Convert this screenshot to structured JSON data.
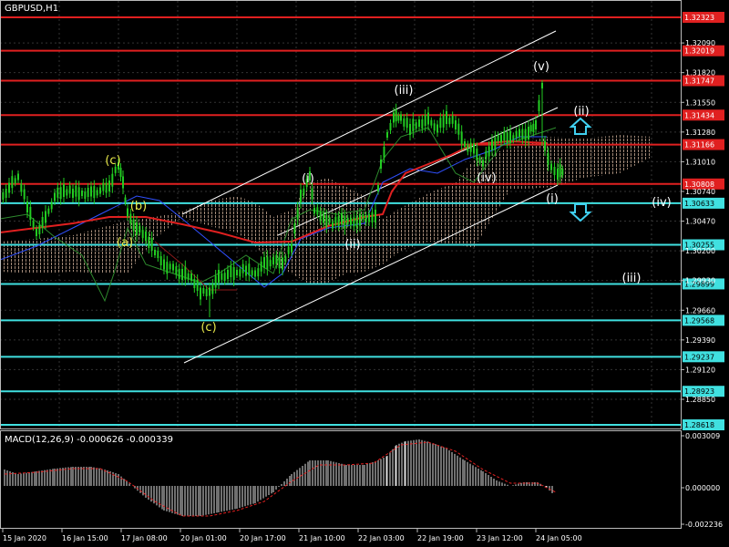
{
  "symbol_label": "GBPUSD,H1",
  "macd_label": "MACD(12,26,9) -0.000626 -0.000339",
  "colors": {
    "background": "#000000",
    "resistance": "#e02020",
    "support": "#40e0e0",
    "price": "#22cc22",
    "channel": "#ffffff",
    "ma": "#e02020",
    "cloud": "#d9b8a0",
    "wave_yellow": "#e8e84a",
    "wave_white": "#ffffff",
    "arrow": "#40d0f0",
    "macd_hist": "#e0e0e0",
    "macd_signal": "#e02020"
  },
  "price_axis": {
    "max": 1.3233,
    "min": 1.2852,
    "ticks": [
      "1.32090",
      "1.31820",
      "1.31550",
      "1.31280",
      "1.31010",
      "1.30740",
      "1.30470",
      "1.30200",
      "1.29930",
      "1.29660",
      "1.29390",
      "1.29120",
      "1.28850"
    ]
  },
  "levels": [
    {
      "price": "1.32323",
      "value": 1.32323,
      "kind": "resistance"
    },
    {
      "price": "1.32019",
      "value": 1.32019,
      "kind": "resistance"
    },
    {
      "price": "1.31747",
      "value": 1.31747,
      "kind": "resistance"
    },
    {
      "price": "1.31434",
      "value": 1.31434,
      "kind": "resistance"
    },
    {
      "price": "1.31166",
      "value": 1.31166,
      "kind": "resistance"
    },
    {
      "price": "1.30808",
      "value": 1.30808,
      "kind": "resistance"
    },
    {
      "price": "1.30633",
      "value": 1.30633,
      "kind": "support"
    },
    {
      "price": "1.30255",
      "value": 1.30255,
      "kind": "support"
    },
    {
      "price": "1.29899",
      "value": 1.29899,
      "kind": "support"
    },
    {
      "price": "1.29568",
      "value": 1.29568,
      "kind": "support"
    },
    {
      "price": "1.29237",
      "value": 1.29237,
      "kind": "support"
    },
    {
      "price": "1.28923",
      "value": 1.28923,
      "kind": "support"
    },
    {
      "price": "1.28618",
      "value": 1.28618,
      "kind": "support"
    }
  ],
  "macd_axis": {
    "max": "0.003009",
    "zero": "0.000000",
    "min": "-0.002236"
  },
  "time_labels": [
    "15 Jan 2020",
    "16 Jan 15:00",
    "17 Jan 08:00",
    "20 Jan 01:00",
    "20 Jan 17:00",
    "21 Jan 10:00",
    "22 Jan 03:00",
    "22 Jan 19:00",
    "23 Jan 12:00",
    "24 Jan 05:00"
  ],
  "wave_labels": [
    {
      "text": "(c)",
      "color": "yellow"
    },
    {
      "text": "(b)",
      "color": "yellow"
    },
    {
      "text": "(a)",
      "color": "yellow"
    },
    {
      "text": "(c)",
      "color": "yellow"
    },
    {
      "text": "(i)",
      "color": "white"
    },
    {
      "text": "(ii)",
      "color": "white"
    },
    {
      "text": "(iii)",
      "color": "white"
    },
    {
      "text": "(iv)",
      "color": "white"
    },
    {
      "text": "(v)",
      "color": "white"
    },
    {
      "text": "(i)",
      "color": "white"
    },
    {
      "text": "(ii)",
      "color": "white"
    },
    {
      "text": "(iii)",
      "color": "white"
    },
    {
      "text": "(iv)",
      "color": "white"
    }
  ]
}
